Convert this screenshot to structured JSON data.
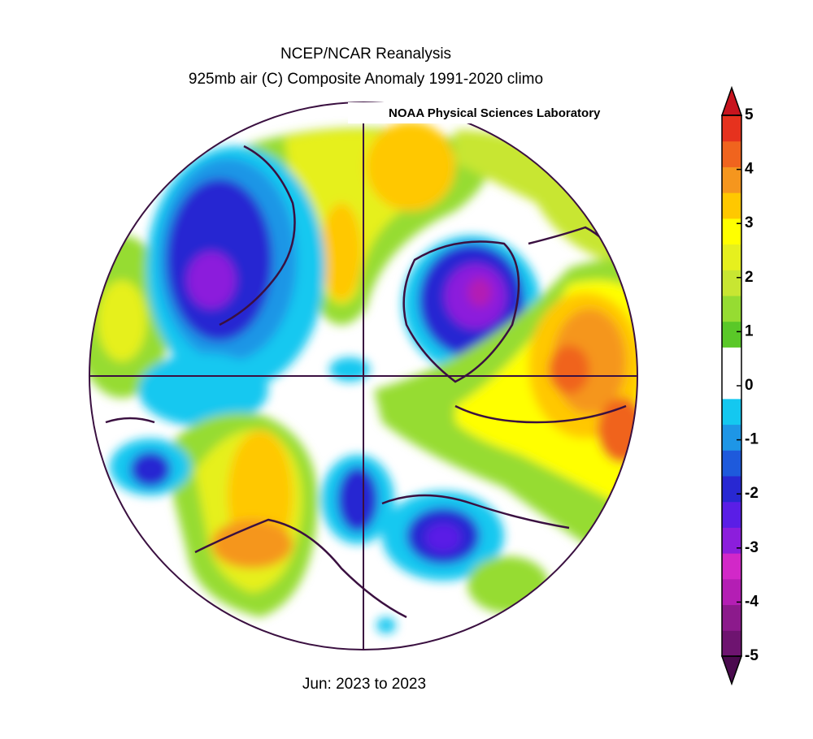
{
  "title": "NCEP/NCAR Reanalysis",
  "subtitle": "925mb air (C) Composite Anomaly 1991-2020 climo",
  "credit": "NOAA Physical Sciences Laboratory",
  "period": "Jun: 2023 to 2023",
  "colorbar": {
    "clim": [
      -5,
      5
    ],
    "ticks": [
      -5,
      -4,
      -3,
      -2,
      -1,
      0,
      1,
      2,
      3,
      4,
      5
    ],
    "under_color": "#4a0a4e",
    "over_color": "#c8141e",
    "colors": [
      "#6e1470",
      "#8c1a8c",
      "#b41eb4",
      "#d228c8",
      "#8c1edc",
      "#5a1ee6",
      "#2828d2",
      "#1e5adc",
      "#1e96e6",
      "#14c8f0",
      "#ffffff",
      "#ffffff",
      "#5ac828",
      "#96dc32",
      "#c8e632",
      "#e6f01e",
      "#ffff00",
      "#ffc800",
      "#f5961e",
      "#f0641e",
      "#e6321e"
    ]
  }
}
